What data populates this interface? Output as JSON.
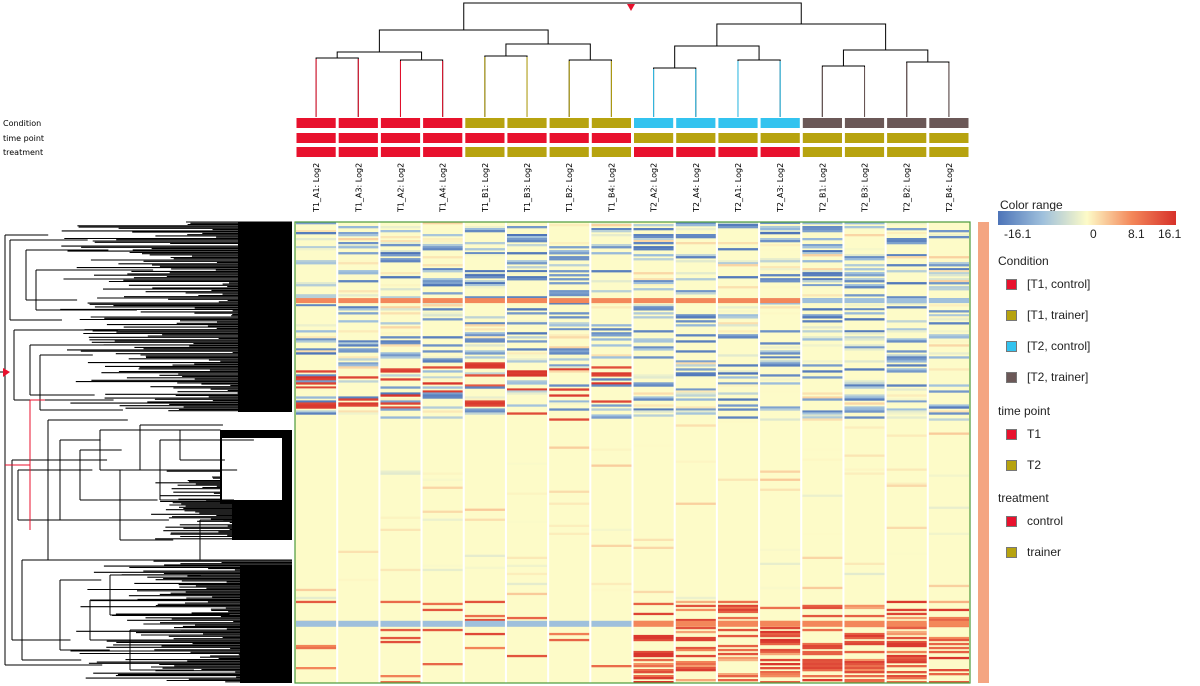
{
  "chart_data": {
    "type": "heatmap",
    "columns": [
      "T1_A1: Log2",
      "T1_A3: Log2",
      "T1_A2: Log2",
      "T1_A4: Log2",
      "T1_B1: Log2",
      "T1_B3: Log2",
      "T1_B2: Log2",
      "T1_B4: Log2",
      "T2_A2: Log2",
      "T2_A4: Log2",
      "T2_A1: Log2",
      "T2_A3: Log2",
      "T2_B1: Log2",
      "T2_B3: Log2",
      "T2_B2: Log2",
      "T2_B4: Log2"
    ],
    "annotation_tracks": [
      {
        "name": "Condition",
        "values": [
          "[T1, control]",
          "[T1, control]",
          "[T1, control]",
          "[T1, control]",
          "[T1, trainer]",
          "[T1, trainer]",
          "[T1, trainer]",
          "[T1, trainer]",
          "[T2, control]",
          "[T2, control]",
          "[T2, control]",
          "[T2, control]",
          "[T2, trainer]",
          "[T2, trainer]",
          "[T2, trainer]",
          "[T2, trainer]"
        ]
      },
      {
        "name": "time point",
        "values": [
          "T1",
          "T1",
          "T1",
          "T1",
          "T1",
          "T1",
          "T1",
          "T1",
          "T2",
          "T2",
          "T2",
          "T2",
          "T2",
          "T2",
          "T2",
          "T2"
        ]
      },
      {
        "name": "treatment",
        "values": [
          "control",
          "control",
          "control",
          "control",
          "trainer",
          "trainer",
          "trainer",
          "trainer",
          "control",
          "control",
          "control",
          "control",
          "trainer",
          "trainer",
          "trainer",
          "trainer"
        ]
      }
    ],
    "color_scale": {
      "title": "Color range",
      "ticks": [
        "-16.1",
        "0",
        "8.1",
        "16.1"
      ],
      "stops": [
        {
          "value": -16.1,
          "color": "#4d74b8"
        },
        {
          "value": -8.0,
          "color": "#9fc0dc"
        },
        {
          "value": 0,
          "color": "#fdfbc8"
        },
        {
          "value": 8.1,
          "color": "#f3875a"
        },
        {
          "value": 16.1,
          "color": "#d7312a"
        }
      ]
    },
    "row_bands": [
      {
        "from": 0.0,
        "to": 0.43,
        "note": "mixed"
      },
      {
        "from": 0.43,
        "to": 0.82,
        "note": "near zero"
      },
      {
        "from": 0.82,
        "to": 1.0,
        "note": "T2 up"
      }
    ]
  },
  "legend": {
    "groups": [
      {
        "title": "Condition",
        "items": [
          {
            "label": "[T1, control]",
            "color": "#e8112d"
          },
          {
            "label": "[T1, trainer]",
            "color": "#b7a30f"
          },
          {
            "label": "[T2, control]",
            "color": "#33c3ef"
          },
          {
            "label": "[T2, trainer]",
            "color": "#6b5857"
          }
        ]
      },
      {
        "title": "time point",
        "items": [
          {
            "label": "T1",
            "color": "#e8112d"
          },
          {
            "label": "T2",
            "color": "#b7a30f"
          }
        ]
      },
      {
        "title": "treatment",
        "items": [
          {
            "label": "control",
            "color": "#e8112d"
          },
          {
            "label": "trainer",
            "color": "#b7a30f"
          }
        ]
      }
    ]
  },
  "colors": {
    "heatmap_border": "#4a9a3a",
    "selection_bar": "#f4a582",
    "dendrogram_marker": "#e8112d",
    "cond_t1_control": "#e8112d",
    "cond_t1_trainer": "#b7a30f",
    "cond_t2_control": "#33c3ef",
    "cond_t2_trainer": "#6b5857"
  }
}
